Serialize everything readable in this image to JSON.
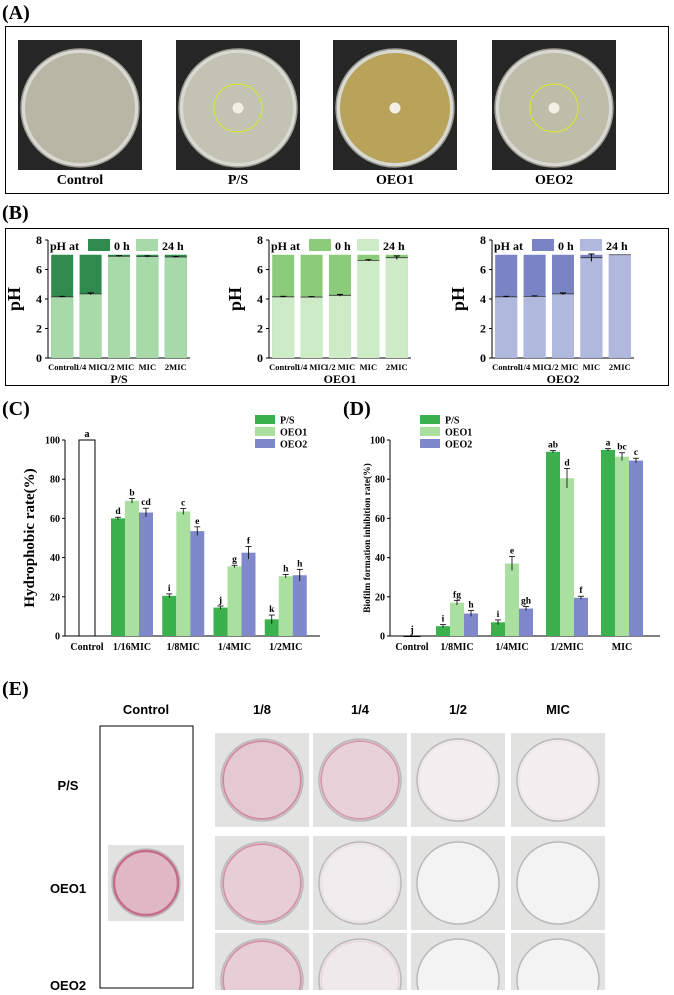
{
  "colors": {
    "ps_dark": "#2f8a4d",
    "ps_light": "#a7d9a9",
    "ps_bar": "#3bb14e",
    "oeo1_dark": "#8ccb7a",
    "oeo1_light": "#cdebc6",
    "oeo1_bar": "#a9e0a0",
    "oeo2_dark": "#7a83c3",
    "oeo2_light": "#b1b8de",
    "oeo2_bar": "#7f88cb",
    "pink": "#c56b8a"
  },
  "panelA": {
    "label": "(A)",
    "dishes": [
      {
        "label": "Control",
        "agar": "#b8b7a6",
        "zone": false,
        "disk": false
      },
      {
        "label": "P/S",
        "agar": "#c2c3b3",
        "zone": true,
        "disk": true
      },
      {
        "label": "OEO1",
        "agar": "#b9a35a",
        "zone": false,
        "disk": true
      },
      {
        "label": "OEO2",
        "agar": "#bdbda9",
        "zone": true,
        "disk": true
      }
    ]
  },
  "panelB": {
    "label": "(B)",
    "legend_prefix": "pH at",
    "legend_0h": "0 h",
    "legend_24h": "24 h",
    "ylabel": "pH",
    "ylim": [
      0,
      8
    ],
    "yticks": [
      0,
      2,
      4,
      6,
      8
    ],
    "categories": [
      "Control",
      "1/4 MIC",
      "1/2 MIC",
      "MIC",
      "2MIC"
    ],
    "charts": [
      {
        "type": "bar",
        "name": "P/S",
        "dark": "#2f8a4d",
        "light": "#a7d9a9",
        "values_0h": [
          7.0,
          7.0,
          7.0,
          7.0,
          7.0
        ],
        "values_24h": [
          4.15,
          4.35,
          6.9,
          6.88,
          6.85
        ],
        "err_24h": [
          0.03,
          0.06,
          0.03,
          0.04,
          0.03
        ]
      },
      {
        "type": "bar",
        "name": "OEO1",
        "dark": "#8ccb7a",
        "light": "#cdebc6",
        "values_0h": [
          7.0,
          7.0,
          7.0,
          7.0,
          7.0
        ],
        "values_24h": [
          4.15,
          4.13,
          4.25,
          6.62,
          6.8
        ],
        "err_24h": [
          0.03,
          0.03,
          0.06,
          0.04,
          0.12
        ]
      },
      {
        "type": "bar",
        "name": "OEO2",
        "dark": "#7a83c3",
        "light": "#b1b8de",
        "values_0h": [
          7.0,
          7.0,
          7.0,
          7.0,
          7.0
        ],
        "values_24h": [
          4.15,
          4.18,
          4.35,
          6.8,
          7.0
        ],
        "err_24h": [
          0.03,
          0.03,
          0.06,
          0.25,
          0.0
        ]
      }
    ]
  },
  "chart_data": [
    {
      "type": "bar",
      "panel": "(C)",
      "title": "",
      "xlabel": "",
      "ylabel": "Hydrophobic rate(%)",
      "ylim": [
        0,
        100
      ],
      "yticks": [
        0,
        20,
        40,
        60,
        80,
        100
      ],
      "control": {
        "label": "Control",
        "value": 100,
        "letter": "a"
      },
      "categories": [
        "1/16MIC",
        "1/8MIC",
        "1/4MIC",
        "1/2MIC"
      ],
      "legend": "top-right",
      "series": [
        {
          "name": "P/S",
          "color": "#3bb14e",
          "values": [
            60,
            20.5,
            14.5,
            8.5
          ],
          "errors": [
            0.6,
            1.0,
            0.8,
            2.2
          ],
          "letters": [
            "d",
            "i",
            "j",
            "k"
          ]
        },
        {
          "name": "OEO1",
          "color": "#a9e0a0",
          "values": [
            69,
            63.5,
            35.5,
            30.5
          ],
          "errors": [
            1.2,
            1.5,
            0.6,
            0.9
          ],
          "letters": [
            "b",
            "c",
            "g",
            "h"
          ]
        },
        {
          "name": "OEO2",
          "color": "#7f88cb",
          "values": [
            63,
            53.5,
            42.5,
            31
          ],
          "errors": [
            2.2,
            2.2,
            3.2,
            3.0
          ],
          "letters": [
            "cd",
            "e",
            "f",
            "h"
          ]
        }
      ]
    },
    {
      "type": "bar",
      "panel": "(D)",
      "title": "",
      "xlabel": "",
      "ylabel": "Biofilm formation inhibition rate(%)",
      "ylim": [
        0,
        100
      ],
      "yticks": [
        0,
        20,
        40,
        60,
        80,
        100
      ],
      "control": {
        "label": "Control",
        "value": 0,
        "letter": "j"
      },
      "categories": [
        "1/8MIC",
        "1/4MIC",
        "1/2MIC",
        "MIC"
      ],
      "legend": "top-left",
      "series": [
        {
          "name": "P/S",
          "color": "#3bb14e",
          "values": [
            5,
            7,
            94,
            95
          ],
          "errors": [
            0.8,
            1.2,
            0.6,
            0.6
          ],
          "letters": [
            "i",
            "i",
            "ab",
            "a"
          ]
        },
        {
          "name": "OEO1",
          "color": "#a9e0a0",
          "values": [
            17,
            37,
            80.5,
            91.5
          ],
          "errors": [
            1.2,
            3.5,
            5.0,
            2.0
          ],
          "letters": [
            "fg",
            "e",
            "d",
            "bc"
          ]
        },
        {
          "name": "OEO2",
          "color": "#7f88cb",
          "values": [
            11.5,
            14,
            19.5,
            89.5
          ],
          "errors": [
            1.5,
            1.0,
            0.8,
            1.2
          ],
          "letters": [
            "h",
            "gh",
            "f",
            "c"
          ]
        }
      ]
    }
  ],
  "panelE": {
    "label": "(E)",
    "control_header": "Control",
    "columns": [
      "1/8",
      "1/4",
      "1/2",
      "MIC"
    ],
    "rows": [
      "P/S",
      "OEO1",
      "OEO2"
    ],
    "stain_levels": [
      [
        0.55,
        0.45,
        0.05,
        0.05
      ],
      [
        0.5,
        0.08,
        0.02,
        0.02
      ],
      [
        0.5,
        0.12,
        0.02,
        0.02
      ]
    ],
    "control_stain": 0.8
  }
}
